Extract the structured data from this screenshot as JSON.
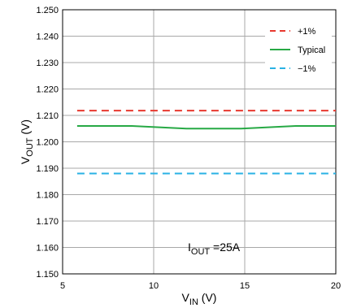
{
  "chart_data": {
    "type": "line",
    "xlabel": {
      "main": "V",
      "sub": "IN",
      "unit": " (V)"
    },
    "ylabel": {
      "main": "V",
      "sub": "OUT",
      "unit": " (V)"
    },
    "xlim": [
      5,
      20
    ],
    "ylim": [
      1.15,
      1.25
    ],
    "xticks": [
      5,
      10,
      15,
      20
    ],
    "xtick_labels": [
      "5",
      "10",
      "15",
      "20"
    ],
    "yticks": [
      1.15,
      1.16,
      1.17,
      1.18,
      1.19,
      1.2,
      1.21,
      1.22,
      1.23,
      1.24,
      1.25
    ],
    "ytick_labels": [
      "1.150",
      "1.160",
      "1.170",
      "1.180",
      "1.190",
      "1.200",
      "1.210",
      "1.220",
      "1.230",
      "1.240",
      "1.250"
    ],
    "grid": true,
    "legend_position": "top-right",
    "series": [
      {
        "name": "+1%",
        "color": "#e8392f",
        "dash": "dashed",
        "x": [
          5.8,
          20
        ],
        "y": [
          1.2118,
          1.2118
        ]
      },
      {
        "name": "Typical",
        "color": "#27a945",
        "dash": "solid",
        "x": [
          5.8,
          8.8,
          11.8,
          14.8,
          17.8,
          20
        ],
        "y": [
          1.206,
          1.206,
          1.205,
          1.205,
          1.206,
          1.206
        ]
      },
      {
        "name": "−1%",
        "color": "#2ab2e4",
        "dash": "dashed",
        "x": [
          5.8,
          20
        ],
        "y": [
          1.188,
          1.188
        ]
      }
    ],
    "annotation": {
      "main": "I",
      "sub": "OUT",
      "rest": " =25A",
      "x": 12.5,
      "y": 1.155
    }
  }
}
